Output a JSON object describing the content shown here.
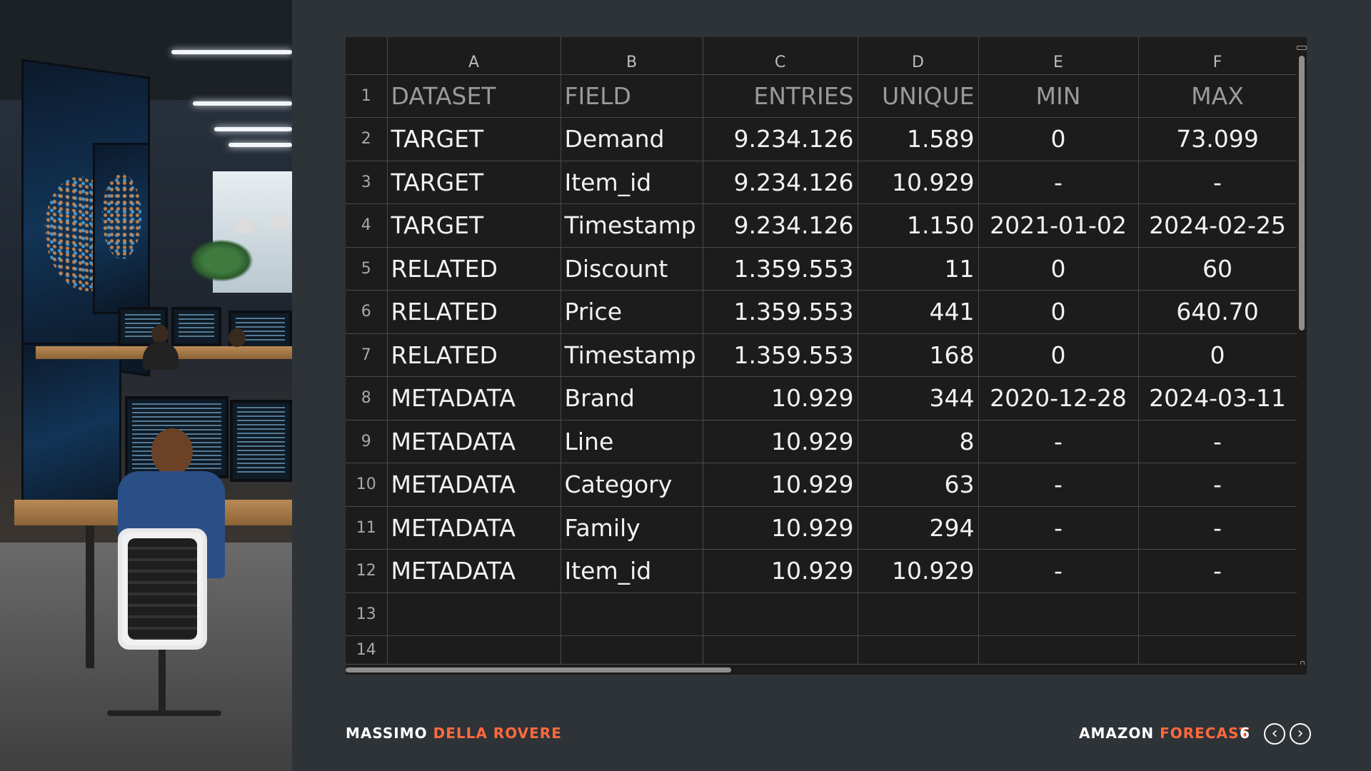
{
  "sheet": {
    "columns": [
      "A",
      "B",
      "C",
      "D",
      "E",
      "F"
    ],
    "row_numbers": [
      "1",
      "2",
      "3",
      "4",
      "5",
      "6",
      "7",
      "8",
      "9",
      "10",
      "11",
      "12",
      "13",
      "14"
    ],
    "header": [
      "DATASET",
      "FIELD",
      "ENTRIES",
      "UNIQUE",
      "MIN",
      "MAX"
    ],
    "rows": [
      [
        "TARGET",
        "Demand",
        "9.234.126",
        "1.589",
        "0",
        "73.099"
      ],
      [
        "TARGET",
        "Item_id",
        "9.234.126",
        "10.929",
        "-",
        "-"
      ],
      [
        "TARGET",
        "Timestamp",
        "9.234.126",
        "1.150",
        "2021-01-02",
        "2024-02-25"
      ],
      [
        "RELATED",
        "Discount",
        "1.359.553",
        "11",
        "0",
        "60"
      ],
      [
        "RELATED",
        "Price",
        "1.359.553",
        "441",
        "0",
        "640.70"
      ],
      [
        "RELATED",
        "Timestamp",
        "1.359.553",
        "168",
        "0",
        "0"
      ],
      [
        "METADATA",
        "Brand",
        "10.929",
        "344",
        "2020-12-28",
        "2024-03-11"
      ],
      [
        "METADATA",
        "Line",
        "10.929",
        "8",
        "-",
        "-"
      ],
      [
        "METADATA",
        "Category",
        "10.929",
        "63",
        "-",
        "-"
      ],
      [
        "METADATA",
        "Family",
        "10.929",
        "294",
        "-",
        "-"
      ],
      [
        "METADATA",
        "Item_id",
        "10.929",
        "10.929",
        "-",
        "-"
      ]
    ]
  },
  "footer": {
    "author_first": "MASSIMO",
    "author_last": "DELLA ROVERE",
    "product_first": "AMAZON",
    "product_last": "FORECAST",
    "page": "6",
    "prev_icon": "chevron-left-circle",
    "next_icon": "chevron-right-circle"
  },
  "colors": {
    "background": "#2e3338",
    "accent": "#ff6a3d",
    "sheet_bg": "#1c1c1c"
  }
}
